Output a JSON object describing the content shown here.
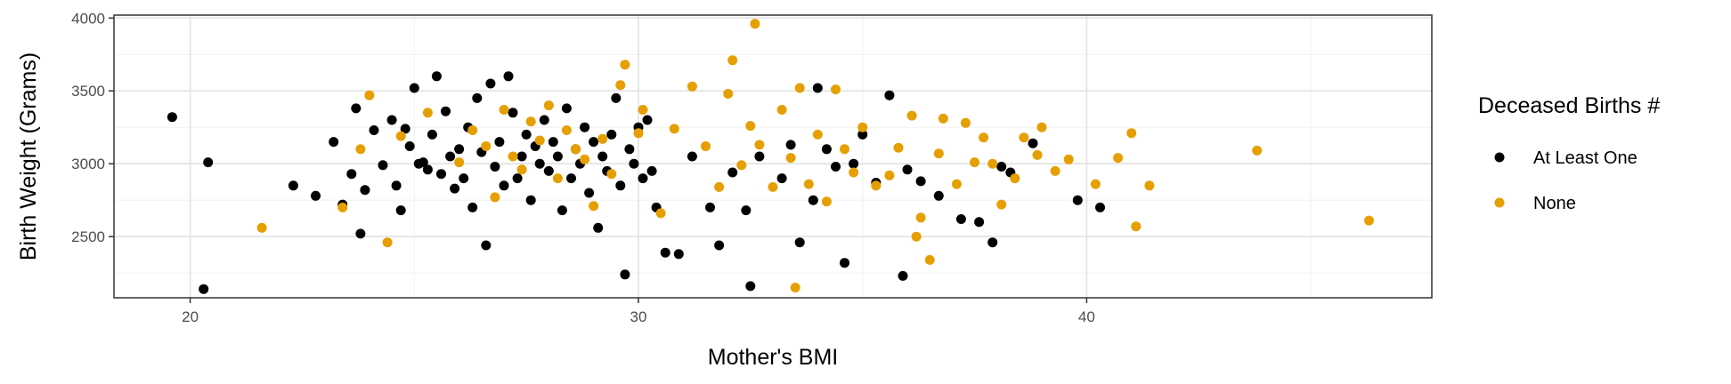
{
  "chart_data": {
    "type": "scatter",
    "title": "",
    "xlabel": "Mother's BMI",
    "ylabel": "Birth Weight (Grams)",
    "xlim": [
      18.3,
      47.7
    ],
    "ylim": [
      2080,
      4020
    ],
    "xticks": [
      20,
      30,
      40
    ],
    "yticks": [
      2500,
      3000,
      3500,
      4000
    ],
    "x_tick_labels": [
      "20",
      "30",
      "40"
    ],
    "y_tick_labels": [
      "2500",
      "3000",
      "3500",
      "4000"
    ],
    "grid": true,
    "legend": {
      "title": "Deceased Births #",
      "position": "right"
    },
    "series": [
      {
        "name": "At Least One",
        "color": "#000000",
        "points": [
          [
            19.6,
            3320
          ],
          [
            20.3,
            2140
          ],
          [
            20.4,
            3010
          ],
          [
            22.3,
            2850
          ],
          [
            22.8,
            2780
          ],
          [
            23.2,
            3150
          ],
          [
            23.4,
            2720
          ],
          [
            23.6,
            2930
          ],
          [
            23.7,
            3380
          ],
          [
            23.8,
            2520
          ],
          [
            23.9,
            2820
          ],
          [
            24.1,
            3230
          ],
          [
            24.3,
            2990
          ],
          [
            24.5,
            3300
          ],
          [
            24.6,
            2850
          ],
          [
            24.7,
            2680
          ],
          [
            24.8,
            3240
          ],
          [
            24.9,
            3120
          ],
          [
            25.0,
            3520
          ],
          [
            25.1,
            3000
          ],
          [
            25.2,
            3010
          ],
          [
            25.3,
            2960
          ],
          [
            25.4,
            3200
          ],
          [
            25.5,
            3600
          ],
          [
            25.6,
            2930
          ],
          [
            25.7,
            3360
          ],
          [
            25.8,
            3050
          ],
          [
            25.9,
            2830
          ],
          [
            26.0,
            3100
          ],
          [
            26.1,
            2900
          ],
          [
            26.2,
            3250
          ],
          [
            26.3,
            2700
          ],
          [
            26.4,
            3450
          ],
          [
            26.5,
            3080
          ],
          [
            26.6,
            2440
          ],
          [
            26.7,
            3550
          ],
          [
            26.8,
            2980
          ],
          [
            26.9,
            3150
          ],
          [
            27.0,
            2850
          ],
          [
            27.1,
            3600
          ],
          [
            27.2,
            3350
          ],
          [
            27.3,
            2900
          ],
          [
            27.4,
            3050
          ],
          [
            27.5,
            3200
          ],
          [
            27.6,
            2750
          ],
          [
            27.7,
            3120
          ],
          [
            27.8,
            3000
          ],
          [
            27.9,
            3300
          ],
          [
            28.0,
            2950
          ],
          [
            28.1,
            3150
          ],
          [
            28.2,
            3050
          ],
          [
            28.3,
            2680
          ],
          [
            28.4,
            3380
          ],
          [
            28.5,
            2900
          ],
          [
            28.6,
            3100
          ],
          [
            28.7,
            3000
          ],
          [
            28.8,
            3250
          ],
          [
            28.9,
            2800
          ],
          [
            29.0,
            3150
          ],
          [
            29.1,
            2560
          ],
          [
            29.2,
            3050
          ],
          [
            29.3,
            2950
          ],
          [
            29.4,
            3200
          ],
          [
            29.5,
            3450
          ],
          [
            29.6,
            2850
          ],
          [
            29.7,
            2240
          ],
          [
            29.8,
            3100
          ],
          [
            29.9,
            3000
          ],
          [
            30.0,
            3250
          ],
          [
            30.1,
            2900
          ],
          [
            30.2,
            3300
          ],
          [
            30.3,
            2950
          ],
          [
            30.4,
            2700
          ],
          [
            30.6,
            2390
          ],
          [
            30.9,
            2380
          ],
          [
            31.2,
            3050
          ],
          [
            31.6,
            2700
          ],
          [
            31.8,
            2440
          ],
          [
            32.1,
            2940
          ],
          [
            32.4,
            2680
          ],
          [
            32.5,
            2160
          ],
          [
            32.7,
            3050
          ],
          [
            33.2,
            2900
          ],
          [
            33.4,
            3130
          ],
          [
            33.6,
            2460
          ],
          [
            33.9,
            2750
          ],
          [
            34.0,
            3520
          ],
          [
            34.2,
            3100
          ],
          [
            34.4,
            2980
          ],
          [
            34.6,
            2320
          ],
          [
            34.8,
            3000
          ],
          [
            35.0,
            3200
          ],
          [
            35.3,
            2870
          ],
          [
            35.6,
            3470
          ],
          [
            35.9,
            2230
          ],
          [
            36.0,
            2960
          ],
          [
            36.3,
            2880
          ],
          [
            36.7,
            2780
          ],
          [
            37.2,
            2620
          ],
          [
            37.6,
            2600
          ],
          [
            37.9,
            2460
          ],
          [
            38.1,
            2980
          ],
          [
            38.3,
            2940
          ],
          [
            38.8,
            3140
          ],
          [
            39.8,
            2750
          ],
          [
            40.3,
            2700
          ]
        ]
      },
      {
        "name": "None",
        "color": "#E69F00",
        "points": [
          [
            21.6,
            2560
          ],
          [
            23.4,
            2700
          ],
          [
            23.8,
            3100
          ],
          [
            24.0,
            3470
          ],
          [
            24.4,
            2460
          ],
          [
            24.7,
            3190
          ],
          [
            25.3,
            3350
          ],
          [
            26.0,
            3010
          ],
          [
            26.3,
            3230
          ],
          [
            26.6,
            3120
          ],
          [
            26.8,
            2770
          ],
          [
            27.0,
            3370
          ],
          [
            27.2,
            3050
          ],
          [
            27.4,
            2960
          ],
          [
            27.6,
            3290
          ],
          [
            27.8,
            3160
          ],
          [
            28.0,
            3400
          ],
          [
            28.2,
            2900
          ],
          [
            28.4,
            3230
          ],
          [
            28.6,
            3100
          ],
          [
            28.8,
            3030
          ],
          [
            29.0,
            2710
          ],
          [
            29.2,
            3170
          ],
          [
            29.4,
            2930
          ],
          [
            29.6,
            3540
          ],
          [
            29.7,
            3680
          ],
          [
            30.0,
            3210
          ],
          [
            30.1,
            3370
          ],
          [
            30.5,
            2660
          ],
          [
            30.8,
            3240
          ],
          [
            31.2,
            3530
          ],
          [
            31.5,
            3120
          ],
          [
            31.8,
            2840
          ],
          [
            32.0,
            3480
          ],
          [
            32.1,
            3710
          ],
          [
            32.3,
            2990
          ],
          [
            32.5,
            3260
          ],
          [
            32.6,
            3960
          ],
          [
            32.7,
            3130
          ],
          [
            33.0,
            2840
          ],
          [
            33.2,
            3370
          ],
          [
            33.4,
            3040
          ],
          [
            33.5,
            2150
          ],
          [
            33.6,
            3520
          ],
          [
            33.8,
            2860
          ],
          [
            34.0,
            3200
          ],
          [
            34.2,
            2740
          ],
          [
            34.4,
            3510
          ],
          [
            34.6,
            3100
          ],
          [
            34.8,
            2940
          ],
          [
            35.0,
            3250
          ],
          [
            35.3,
            2850
          ],
          [
            35.6,
            2920
          ],
          [
            35.8,
            3110
          ],
          [
            36.1,
            3330
          ],
          [
            36.2,
            2500
          ],
          [
            36.3,
            2630
          ],
          [
            36.5,
            2340
          ],
          [
            36.7,
            3070
          ],
          [
            36.8,
            3310
          ],
          [
            37.1,
            2860
          ],
          [
            37.3,
            3280
          ],
          [
            37.5,
            3010
          ],
          [
            37.7,
            3180
          ],
          [
            37.9,
            3000
          ],
          [
            38.1,
            2720
          ],
          [
            38.4,
            2900
          ],
          [
            38.6,
            3180
          ],
          [
            38.9,
            3060
          ],
          [
            39.0,
            3250
          ],
          [
            39.3,
            2950
          ],
          [
            39.6,
            3030
          ],
          [
            40.2,
            2860
          ],
          [
            40.7,
            3040
          ],
          [
            41.0,
            3210
          ],
          [
            41.1,
            2570
          ],
          [
            41.4,
            2850
          ],
          [
            43.8,
            3090
          ],
          [
            46.3,
            2610
          ]
        ]
      }
    ]
  }
}
